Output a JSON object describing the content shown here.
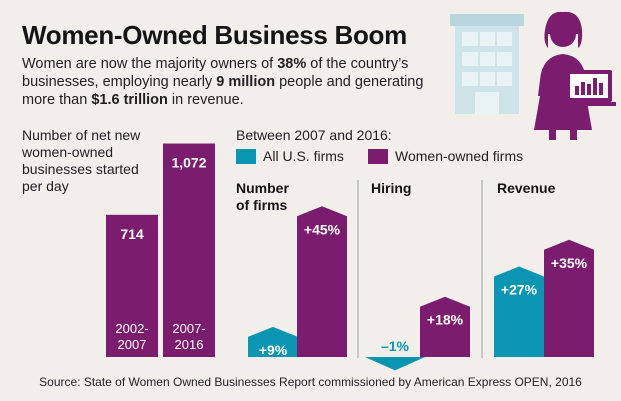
{
  "title": "Women-Owned Business Boom",
  "intro": {
    "p1": "Women are now the majority owners of ",
    "b1": "38%",
    "p2": " of the country’s businesses, employing nearly ",
    "b2": "9 million",
    "p3": " people and generating more than ",
    "b3": "$1.6 trillion",
    "p4": " in revenue."
  },
  "left_chart_label": "Number of net new women-owned businesses started per day",
  "period_label": "Between 2007 and 2016:",
  "legend": [
    {
      "name": "All U.S. firms",
      "color": "#0a96b3"
    },
    {
      "name": "Women-owned firms",
      "color": "#7b1c6e"
    }
  ],
  "colors": {
    "purple": "#7b1c6e",
    "teal": "#0a96b3",
    "background": "#f2eeea",
    "icon_gray": "#bfd8e0"
  },
  "icons": [
    "office-building-icon",
    "businesswoman-with-laptop-icon"
  ],
  "chart_data": [
    {
      "type": "bar",
      "title": "Number of net new women-owned businesses started per day",
      "categories": [
        "2002-2007",
        "2007-2016"
      ],
      "values": [
        714,
        1072
      ],
      "data_labels": [
        "714",
        "1,072"
      ],
      "ylim": [
        0,
        1150
      ]
    },
    {
      "type": "bar",
      "title": "Between 2007 and 2016:",
      "categories": [
        "Number of firms",
        "Hiring",
        "Revenue"
      ],
      "series": [
        {
          "name": "All U.S. firms",
          "values": [
            9,
            -1,
            27
          ],
          "labels": [
            "+9%",
            "–1%",
            "+27%"
          ]
        },
        {
          "name": "Women-owned firms",
          "values": [
            45,
            18,
            35
          ],
          "labels": [
            "+45%",
            "+18%",
            "+35%"
          ]
        }
      ],
      "unit": "%"
    }
  ],
  "source": "Source: State of Women Owned Businesses Report commissioned by American Express OPEN, 2016"
}
